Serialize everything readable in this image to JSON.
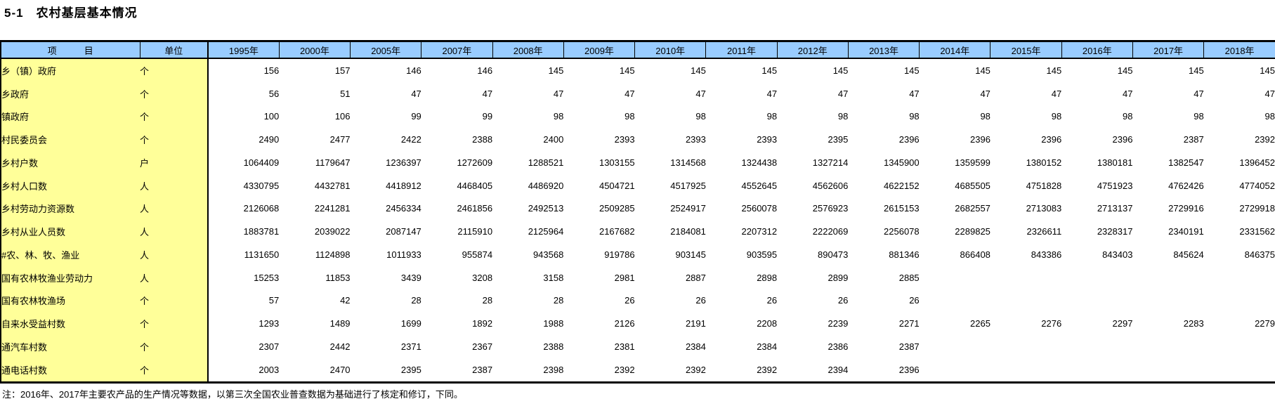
{
  "colors": {
    "header_bg": "#99CCFF",
    "label_bg": "#FFFF99",
    "border": "#000000",
    "page_bg": "#FFFFFF"
  },
  "chart_data": {
    "type": "table",
    "title": "5-1　农村基层基本情况",
    "item_header": "项　　　目",
    "unit_header": "单位",
    "years": [
      "1995年",
      "2000年",
      "2005年",
      "2007年",
      "2008年",
      "2009年",
      "2010年",
      "2011年",
      "2012年",
      "2013年",
      "2014年",
      "2015年",
      "2016年",
      "2017年",
      "2018年"
    ],
    "rows": [
      {
        "label": "乡（镇）政府",
        "indent": 0,
        "unit": "个",
        "values": [
          156,
          157,
          146,
          146,
          145,
          145,
          145,
          145,
          145,
          145,
          145,
          145,
          145,
          145,
          145
        ]
      },
      {
        "label": "乡政府",
        "indent": 2,
        "unit": "个",
        "values": [
          56,
          51,
          47,
          47,
          47,
          47,
          47,
          47,
          47,
          47,
          47,
          47,
          47,
          47,
          47
        ]
      },
      {
        "label": "镇政府",
        "indent": 2,
        "unit": "个",
        "values": [
          100,
          106,
          99,
          99,
          98,
          98,
          98,
          98,
          98,
          98,
          98,
          98,
          98,
          98,
          98
        ]
      },
      {
        "label": "村民委员会",
        "indent": 0,
        "unit": "个",
        "values": [
          2490,
          2477,
          2422,
          2388,
          2400,
          2393,
          2393,
          2393,
          2395,
          2396,
          2396,
          2396,
          2396,
          2387,
          2392
        ]
      },
      {
        "label": "乡村户数",
        "indent": 0,
        "unit": "户",
        "values": [
          1064409,
          1179647,
          1236397,
          1272609,
          1288521,
          1303155,
          1314568,
          1324438,
          1327214,
          1345900,
          1359599,
          1380152,
          1380181,
          1382547,
          1396452
        ]
      },
      {
        "label": "乡村人口数",
        "indent": 0,
        "unit": "人",
        "values": [
          4330795,
          4432781,
          4418912,
          4468405,
          4486920,
          4504721,
          4517925,
          4552645,
          4562606,
          4622152,
          4685505,
          4751828,
          4751923,
          4762426,
          4774052
        ]
      },
      {
        "label": "乡村劳动力资源数",
        "indent": 0,
        "unit": "人",
        "values": [
          2126068,
          2241281,
          2456334,
          2461856,
          2492513,
          2509285,
          2524917,
          2560078,
          2576923,
          2615153,
          2682557,
          2713083,
          2713137,
          2729916,
          2729918
        ]
      },
      {
        "label": "乡村从业人员数",
        "indent": 0,
        "unit": "人",
        "values": [
          1883781,
          2039022,
          2087147,
          2115910,
          2125964,
          2167682,
          2184081,
          2207312,
          2222069,
          2256078,
          2289825,
          2326611,
          2328317,
          2340191,
          2331562
        ]
      },
      {
        "label": "#农、林、牧、渔业",
        "indent": 1,
        "unit": "人",
        "values": [
          1131650,
          1124898,
          1011933,
          955874,
          943568,
          919786,
          903145,
          903595,
          890473,
          881346,
          866408,
          843386,
          843403,
          845624,
          846375
        ]
      },
      {
        "label": "国有农林牧渔业劳动力",
        "indent": 0,
        "unit": "人",
        "values": [
          15253,
          11853,
          3439,
          3208,
          3158,
          2981,
          2887,
          2898,
          2899,
          2885,
          "",
          "",
          "",
          "",
          ""
        ]
      },
      {
        "label": "国有农林牧渔场",
        "indent": 0,
        "unit": "个",
        "values": [
          57,
          42,
          28,
          28,
          28,
          26,
          26,
          26,
          26,
          26,
          "",
          "",
          "",
          "",
          ""
        ]
      },
      {
        "label": "自来水受益村数",
        "indent": 0,
        "unit": "个",
        "values": [
          1293,
          1489,
          1699,
          1892,
          1988,
          2126,
          2191,
          2208,
          2239,
          2271,
          2265,
          2276,
          2297,
          2283,
          2279
        ]
      },
      {
        "label": "通汽车村数",
        "indent": 0,
        "unit": "个",
        "values": [
          2307,
          2442,
          2371,
          2367,
          2388,
          2381,
          2384,
          2384,
          2386,
          2387,
          "",
          "",
          "",
          "",
          ""
        ]
      },
      {
        "label": "通电话村数",
        "indent": 0,
        "unit": "个",
        "values": [
          2003,
          2470,
          2395,
          2387,
          2398,
          2392,
          2392,
          2392,
          2394,
          2396,
          "",
          "",
          "",
          "",
          ""
        ]
      }
    ],
    "note": "注：2016年、2017年主要农产品的生产情况等数据，以第三次全国农业普查数据为基础进行了核定和修订，下同。"
  }
}
